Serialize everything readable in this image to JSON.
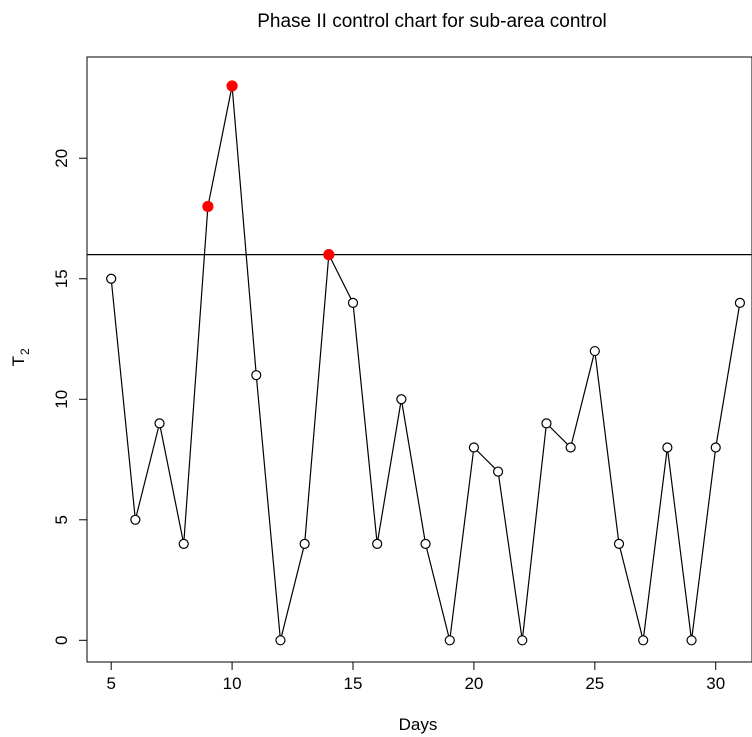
{
  "chart_data": {
    "type": "line",
    "title": "Phase II control chart for sub-area control",
    "xlabel": "Days",
    "ylabel_main": "T",
    "ylabel_sub": "2",
    "xlim": [
      4,
      31.5
    ],
    "ylim": [
      -0.9,
      24.2
    ],
    "x_ticks": [
      5,
      10,
      15,
      20,
      25,
      30
    ],
    "y_ticks": [
      0,
      5,
      10,
      15,
      20
    ],
    "control_limit": 16,
    "x": [
      5,
      6,
      7,
      8,
      9,
      10,
      11,
      12,
      13,
      14,
      15,
      16,
      17,
      18,
      19,
      20,
      21,
      22,
      23,
      24,
      25,
      26,
      27,
      28,
      29,
      30,
      31
    ],
    "values": [
      15,
      5,
      9,
      4,
      18,
      23,
      11,
      0,
      4,
      16,
      14,
      4,
      10,
      4,
      0,
      8,
      7,
      0,
      9,
      8,
      12,
      4,
      0,
      8,
      0,
      8,
      14
    ],
    "highlight_x": [
      9,
      10,
      14
    ],
    "colors": {
      "line": "#000000",
      "normal_point": "#000000",
      "out_of_control_point": "#ff0000",
      "frame": "#000000"
    },
    "grid": false
  }
}
